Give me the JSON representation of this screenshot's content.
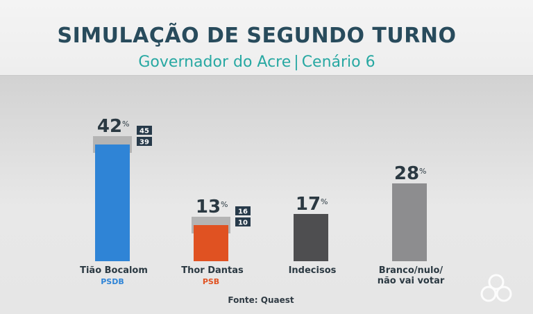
{
  "title": "SIMULAÇÃO DE SEGUNDO TURNO",
  "subtitle_left": "Governador do Acre",
  "subtitle_sep": "|",
  "subtitle_right": "Cenário 6",
  "source": "Fonte: Quaest",
  "chart_data": {
    "type": "bar",
    "unit": "%",
    "categories": [
      "Tião Bocalom",
      "Thor Dantas",
      "Indecisos",
      "Branco/nulo/\nnão vai votar"
    ],
    "parties": [
      "PSDB",
      "PSB",
      "",
      ""
    ],
    "values": [
      42,
      13,
      17,
      28
    ],
    "margin_of_error": [
      {
        "upper": 45,
        "lower": 39
      },
      {
        "upper": 16,
        "lower": 10
      },
      null,
      null
    ],
    "colors": [
      "#2f84d6",
      "#e05222",
      "#4e4e50",
      "#8d8d8f"
    ],
    "party_colors": [
      "#2f84d6",
      "#e05222"
    ],
    "ylim": [
      0,
      45
    ]
  }
}
